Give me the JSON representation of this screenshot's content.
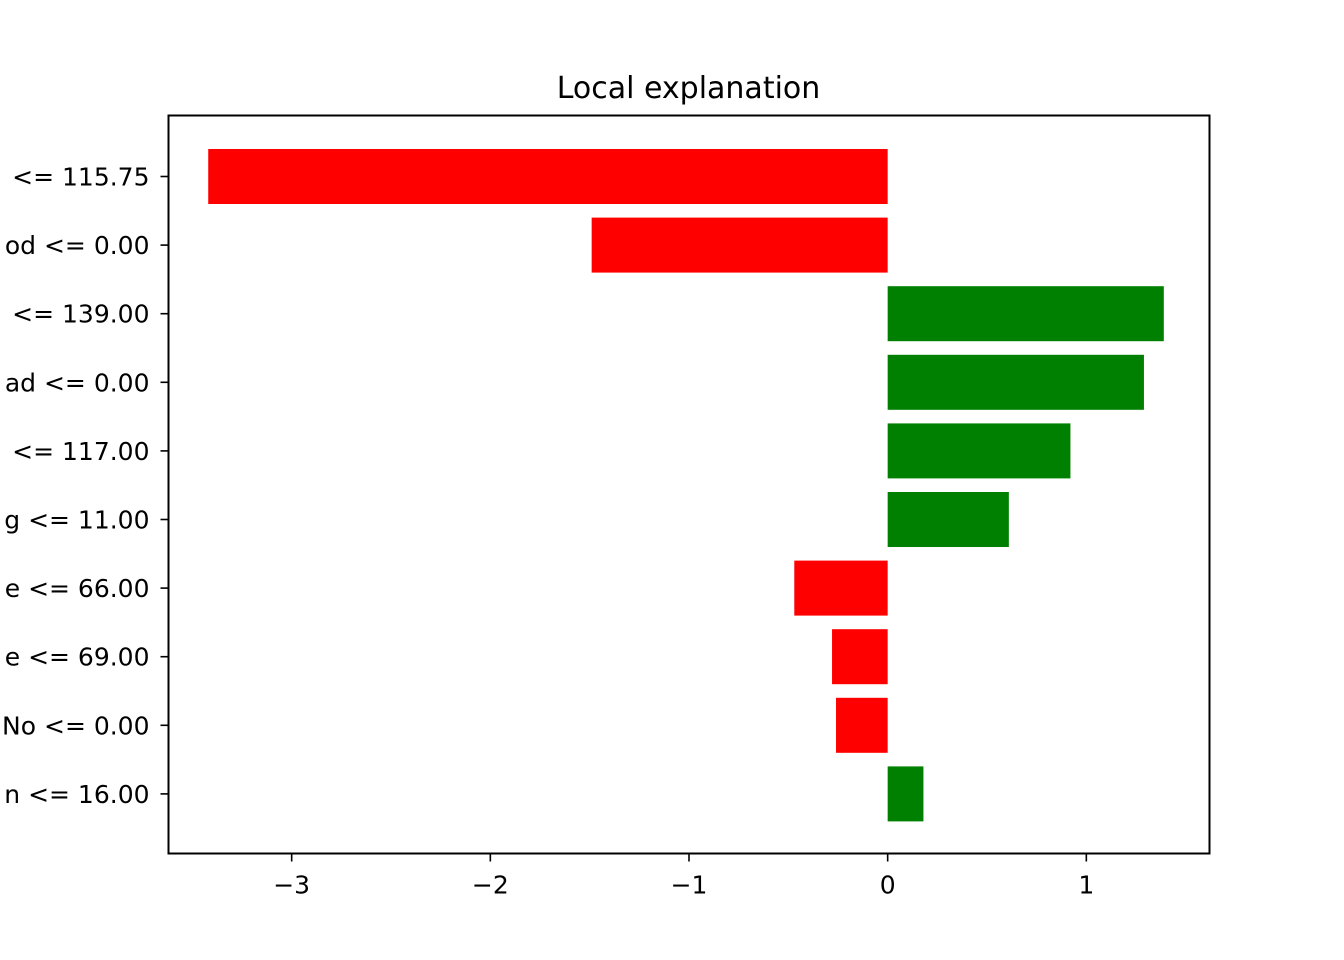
{
  "chart_data": {
    "type": "bar",
    "orientation": "horizontal",
    "title": "Local explanation",
    "xlabel": "",
    "ylabel": "",
    "xlim": [
      -3.62,
      1.62
    ],
    "xticks": [
      -3,
      -2,
      -1,
      0,
      1
    ],
    "xtick_labels": [
      "−3",
      "−2",
      "−1",
      "0",
      "1"
    ],
    "grid": false,
    "categories": [
      "<= 115.75",
      "od <= 0.00",
      "<= 139.00",
      "ad <= 0.00",
      "<= 117.00",
      "g <= 11.00",
      "e <= 66.00",
      "e <= 69.00",
      "No <= 0.00",
      "n <= 16.00"
    ],
    "values": [
      -3.42,
      -1.49,
      1.39,
      1.29,
      0.92,
      0.61,
      -0.47,
      -0.28,
      -0.26,
      0.18
    ],
    "colors": {
      "positive": "#008000",
      "negative": "#ff0000"
    }
  }
}
